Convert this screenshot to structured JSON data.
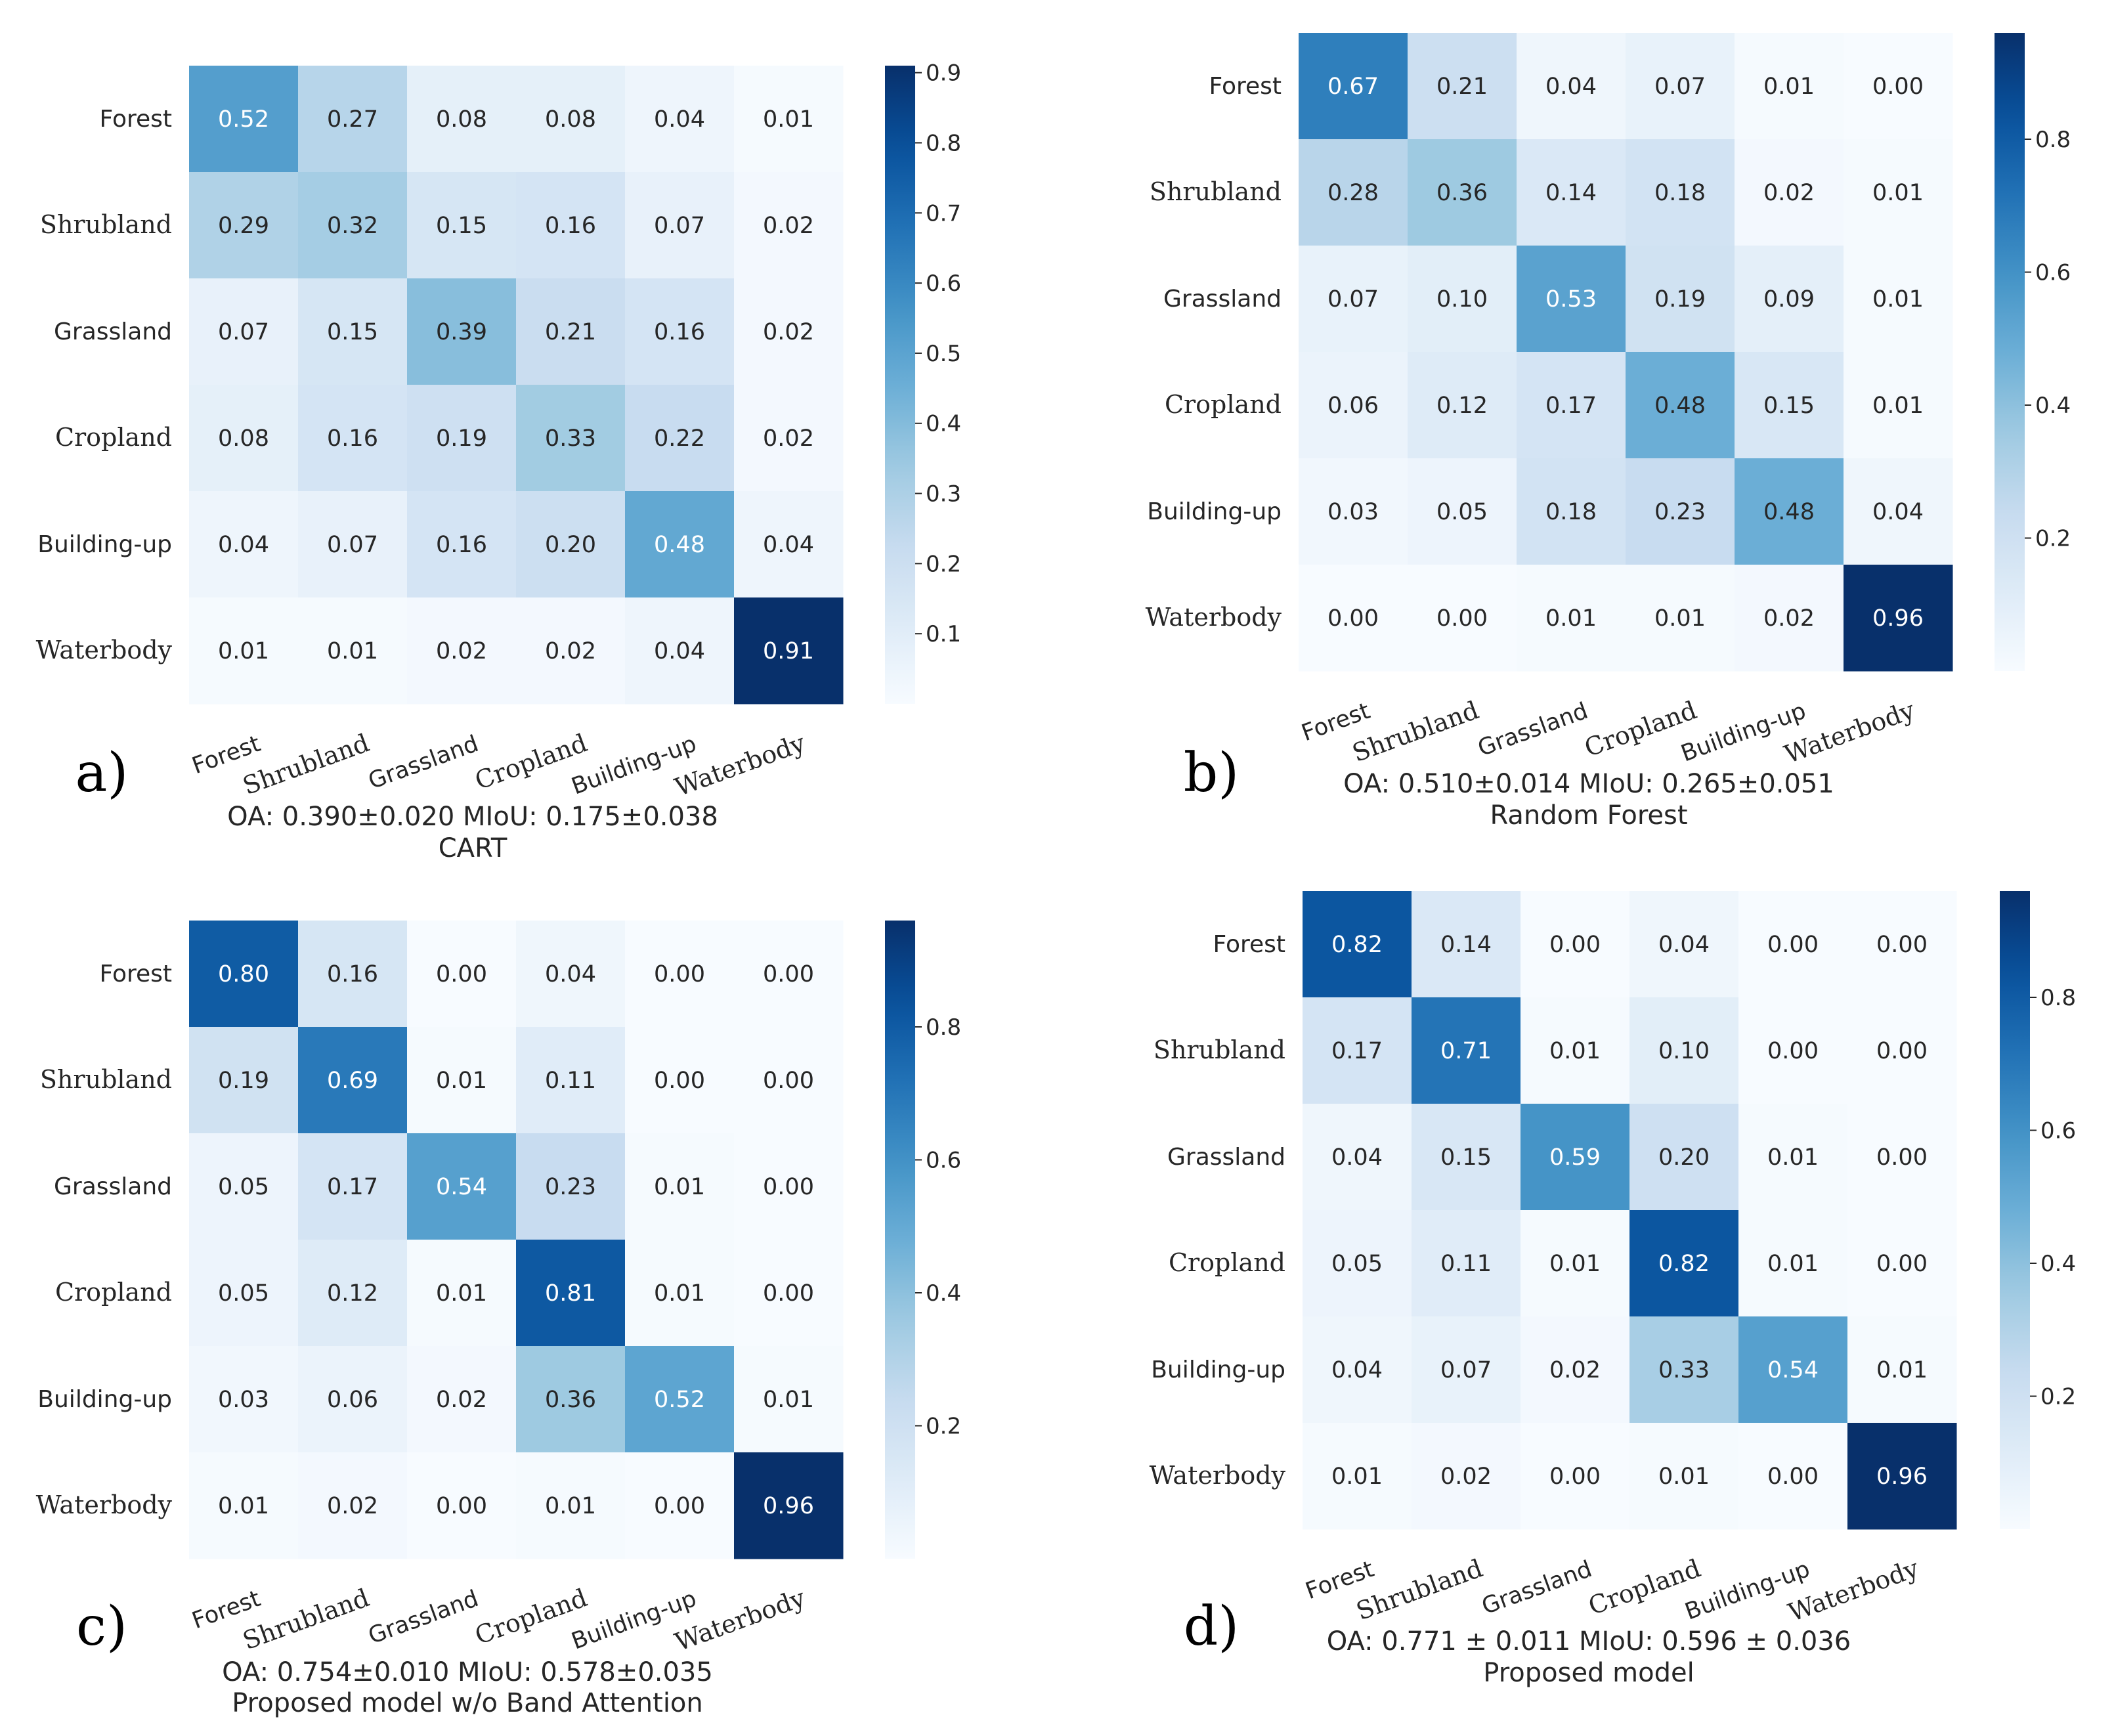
{
  "chart_data": [
    {
      "type": "heatmap",
      "panel_label": "a)",
      "metrics": "OA: 0.390±0.020  MIoU: 0.175±0.038",
      "method": "CART",
      "rows": [
        "Forest",
        "Shrubland",
        "Grassland",
        "Cropland",
        "Building-up",
        "Waterbody"
      ],
      "cols": [
        "Forest",
        "Shrubland",
        "Grassland",
        "Cropland",
        "Building-up",
        "Waterbody"
      ],
      "values": [
        [
          0.52,
          0.27,
          0.08,
          0.08,
          0.04,
          0.01
        ],
        [
          0.29,
          0.32,
          0.15,
          0.16,
          0.07,
          0.02
        ],
        [
          0.07,
          0.15,
          0.39,
          0.21,
          0.16,
          0.02
        ],
        [
          0.08,
          0.16,
          0.19,
          0.33,
          0.22,
          0.02
        ],
        [
          0.04,
          0.07,
          0.16,
          0.2,
          0.48,
          0.04
        ],
        [
          0.01,
          0.01,
          0.02,
          0.02,
          0.04,
          0.91
        ]
      ],
      "colorbar": {
        "min": 0.0,
        "max": 0.91,
        "ticks": [
          0.1,
          0.2,
          0.3,
          0.4,
          0.5,
          0.6,
          0.7,
          0.8,
          0.9
        ]
      },
      "colormap": "Blues"
    },
    {
      "type": "heatmap",
      "panel_label": "b)",
      "metrics": "OA: 0.510±0.014  MIoU: 0.265±0.051",
      "method": "Random Forest",
      "rows": [
        "Forest",
        "Shrubland",
        "Grassland",
        "Cropland",
        "Building-up",
        "Waterbody"
      ],
      "cols": [
        "Forest",
        "Shrubland",
        "Grassland",
        "Cropland",
        "Building-up",
        "Waterbody"
      ],
      "values": [
        [
          0.67,
          0.21,
          0.04,
          0.07,
          0.01,
          0.0
        ],
        [
          0.28,
          0.36,
          0.14,
          0.18,
          0.02,
          0.01
        ],
        [
          0.07,
          0.1,
          0.53,
          0.19,
          0.09,
          0.01
        ],
        [
          0.06,
          0.12,
          0.17,
          0.48,
          0.15,
          0.01
        ],
        [
          0.03,
          0.05,
          0.18,
          0.23,
          0.48,
          0.04
        ],
        [
          0.0,
          0.0,
          0.01,
          0.01,
          0.02,
          0.96
        ]
      ],
      "colorbar": {
        "min": 0.0,
        "max": 0.96,
        "ticks": [
          0.2,
          0.4,
          0.6,
          0.8
        ]
      },
      "colormap": "Blues"
    },
    {
      "type": "heatmap",
      "panel_label": "c)",
      "metrics": "OA: 0.754±0.010  MIoU: 0.578±0.035",
      "method": "Proposed model w/o Band Attention",
      "rows": [
        "Forest",
        "Shrubland",
        "Grassland",
        "Cropland",
        "Building-up",
        "Waterbody"
      ],
      "cols": [
        "Forest",
        "Shrubland",
        "Grassland",
        "Cropland",
        "Building-up",
        "Waterbody"
      ],
      "values": [
        [
          0.8,
          0.16,
          0.0,
          0.04,
          0.0,
          0.0
        ],
        [
          0.19,
          0.69,
          0.01,
          0.11,
          0.0,
          0.0
        ],
        [
          0.05,
          0.17,
          0.54,
          0.23,
          0.01,
          0.0
        ],
        [
          0.05,
          0.12,
          0.01,
          0.81,
          0.01,
          0.0
        ],
        [
          0.03,
          0.06,
          0.02,
          0.36,
          0.52,
          0.01
        ],
        [
          0.01,
          0.02,
          0.0,
          0.01,
          0.0,
          0.96
        ]
      ],
      "colorbar": {
        "min": 0.0,
        "max": 0.96,
        "ticks": [
          0.2,
          0.4,
          0.6,
          0.8
        ]
      },
      "colormap": "Blues"
    },
    {
      "type": "heatmap",
      "panel_label": "d)",
      "metrics": "OA: 0.771 ± 0.011  MIoU: 0.596 ± 0.036",
      "method": "Proposed model",
      "rows": [
        "Forest",
        "Shrubland",
        "Grassland",
        "Cropland",
        "Building-up",
        "Waterbody"
      ],
      "cols": [
        "Forest",
        "Shrubland",
        "Grassland",
        "Cropland",
        "Building-up",
        "Waterbody"
      ],
      "values": [
        [
          0.82,
          0.14,
          0.0,
          0.04,
          0.0,
          0.0
        ],
        [
          0.17,
          0.71,
          0.01,
          0.1,
          0.0,
          0.0
        ],
        [
          0.04,
          0.15,
          0.59,
          0.2,
          0.01,
          0.0
        ],
        [
          0.05,
          0.11,
          0.01,
          0.82,
          0.01,
          0.0
        ],
        [
          0.04,
          0.07,
          0.02,
          0.33,
          0.54,
          0.01
        ],
        [
          0.01,
          0.02,
          0.0,
          0.01,
          0.0,
          0.96
        ]
      ],
      "colorbar": {
        "min": 0.0,
        "max": 0.96,
        "ticks": [
          0.2,
          0.4,
          0.6,
          0.8
        ]
      },
      "colormap": "Blues"
    }
  ]
}
